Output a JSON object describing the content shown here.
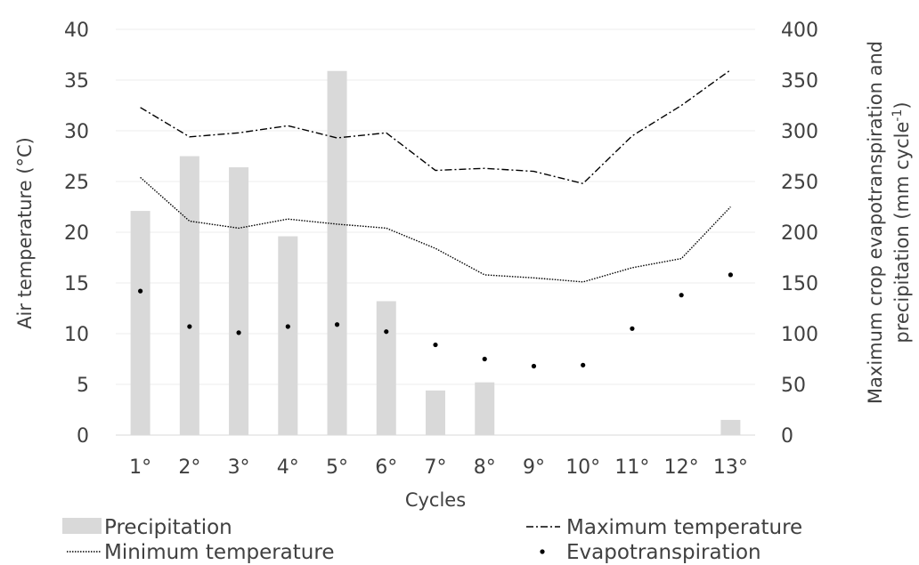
{
  "chart_data": {
    "type": "bar",
    "categories": [
      "1°",
      "2°",
      "3°",
      "4°",
      "5°",
      "6°",
      "7°",
      "8°",
      "9°",
      "10°",
      "11°",
      "12°",
      "13°"
    ],
    "xlabel": "Cycles",
    "ylabel": "Air temperature (°C)",
    "y2label_line1": "Maximum crop evapotranspiration and",
    "y2label_line2_prefix": "precipitation (mm cycle",
    "y2label_line2_sup": "-1",
    "y2label_line2_suffix": ")",
    "ylim": [
      0,
      40
    ],
    "yticks": [
      0,
      5,
      10,
      15,
      20,
      25,
      30,
      35,
      40
    ],
    "y2lim": [
      0,
      400
    ],
    "y2ticks": [
      0,
      50,
      100,
      150,
      200,
      250,
      300,
      350,
      400
    ],
    "grid": true,
    "legend_position": "bottom",
    "series": [
      {
        "name": "Precipitation",
        "kind": "bar",
        "axis": "right",
        "color": "#d9d9d9",
        "values": [
          221,
          275,
          264,
          196,
          359,
          132,
          44,
          52,
          0,
          0,
          0,
          0,
          15
        ]
      },
      {
        "name": "Maximum temperature",
        "kind": "line",
        "style": "dash-dot",
        "axis": "left",
        "color": "#000000",
        "values": [
          32.3,
          29.4,
          29.8,
          30.5,
          29.3,
          29.8,
          26.1,
          26.3,
          26.0,
          24.8,
          29.5,
          32.5,
          36.0
        ]
      },
      {
        "name": "Minimum temperature",
        "kind": "line",
        "style": "dotted",
        "axis": "left",
        "color": "#000000",
        "values": [
          25.4,
          21.1,
          20.4,
          21.3,
          20.8,
          20.4,
          18.4,
          15.8,
          15.5,
          15.1,
          16.5,
          17.4,
          22.5
        ]
      },
      {
        "name": "Evapotranspiration",
        "kind": "scatter",
        "axis": "right",
        "color": "#000000",
        "values": [
          142,
          107,
          101,
          107,
          109,
          102,
          89,
          75,
          68,
          69,
          105,
          138,
          158
        ]
      }
    ]
  }
}
